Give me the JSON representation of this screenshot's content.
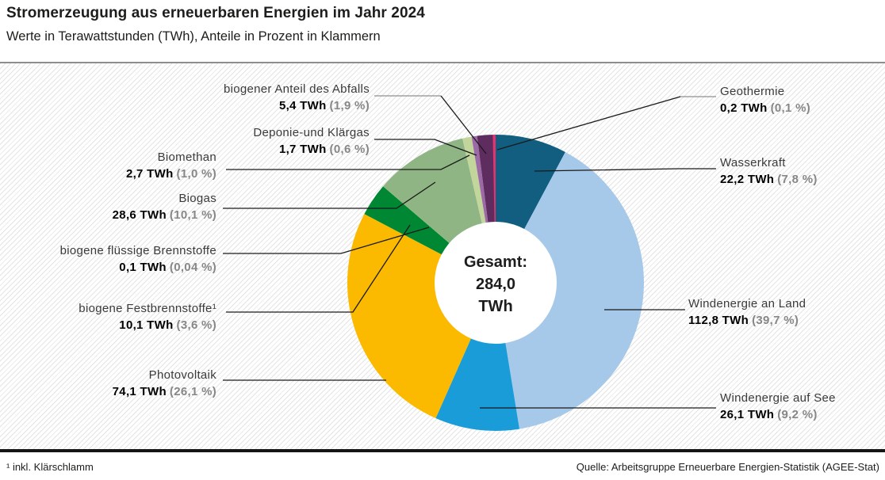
{
  "header": {
    "title": "Stromerzeugung aus erneuerbaren Energien im Jahr 2024",
    "subtitle": "Werte in Terawattstunden (TWh), Anteile in Prozent in Klammern"
  },
  "chart_data": {
    "type": "pie",
    "subtype": "donut",
    "title": "Stromerzeugung aus erneuerbaren Energien im Jahr 2024",
    "unit": "TWh",
    "direction": "clockwise",
    "start_angle_deg": 0,
    "legend": "callout-labels",
    "total": {
      "label": "Gesamt:",
      "value": "284,0",
      "unit": "TWh",
      "value_numeric": 284.0
    },
    "segments": [
      {
        "name": "Wasserkraft",
        "value_twh": 22.2,
        "value_label": "22,2 TWh",
        "percent": 7.8,
        "percent_label": "(7,8 %)",
        "color": "#115e80"
      },
      {
        "name": "Windenergie an Land",
        "value_twh": 112.8,
        "value_label": "112,8 TWh",
        "percent": 39.7,
        "percent_label": "(39,7 %)",
        "color": "#a7c9e9"
      },
      {
        "name": "Windenergie auf See",
        "value_twh": 26.1,
        "value_label": "26,1 TWh",
        "percent": 9.2,
        "percent_label": "(9,2 %)",
        "color": "#1a9cd8"
      },
      {
        "name": "Photovoltaik",
        "value_twh": 74.1,
        "value_label": "74,1 TWh",
        "percent": 26.1,
        "percent_label": "(26,1 %)",
        "color": "#fbba00"
      },
      {
        "name": "biogene Festbrennstoffe¹",
        "value_twh": 10.1,
        "value_label": "10,1 TWh",
        "percent": 3.6,
        "percent_label": "(3,6 %)",
        "color": "#008733"
      },
      {
        "name": "biogene flüssige Brennstoffe",
        "value_twh": 0.1,
        "value_label": "0,1 TWh",
        "percent": 0.04,
        "percent_label": "(0,04 %)",
        "color": "#7aa83d"
      },
      {
        "name": "Biogas",
        "value_twh": 28.6,
        "value_label": "28,6 TWh",
        "percent": 10.1,
        "percent_label": "(10,1 %)",
        "color": "#8fb584"
      },
      {
        "name": "Biomethan",
        "value_twh": 2.7,
        "value_label": "2,7 TWh",
        "percent": 1.0,
        "percent_label": "(1,0 %)",
        "color": "#c2d69c"
      },
      {
        "name": "Deponie-und Klärgas",
        "value_twh": 1.7,
        "value_label": "1,7 TWh",
        "percent": 0.6,
        "percent_label": "(0,6 %)",
        "color": "#9c6ba6"
      },
      {
        "name": "biogener Anteil des Abfalls",
        "value_twh": 5.4,
        "value_label": "5,4 TWh",
        "percent": 1.9,
        "percent_label": "(1,9 %)",
        "color": "#5f2c60"
      },
      {
        "name": "Geothermie",
        "value_twh": 0.2,
        "value_label": "0,2 TWh",
        "percent": 0.1,
        "percent_label": "(0,1 %)",
        "color": "#e5336f"
      }
    ]
  },
  "footer": {
    "footnote": "¹ inkl. Klärschlamm",
    "source": "Quelle: Arbeitsgruppe Erneuerbare Energien-Statistik (AGEE-Stat)"
  }
}
